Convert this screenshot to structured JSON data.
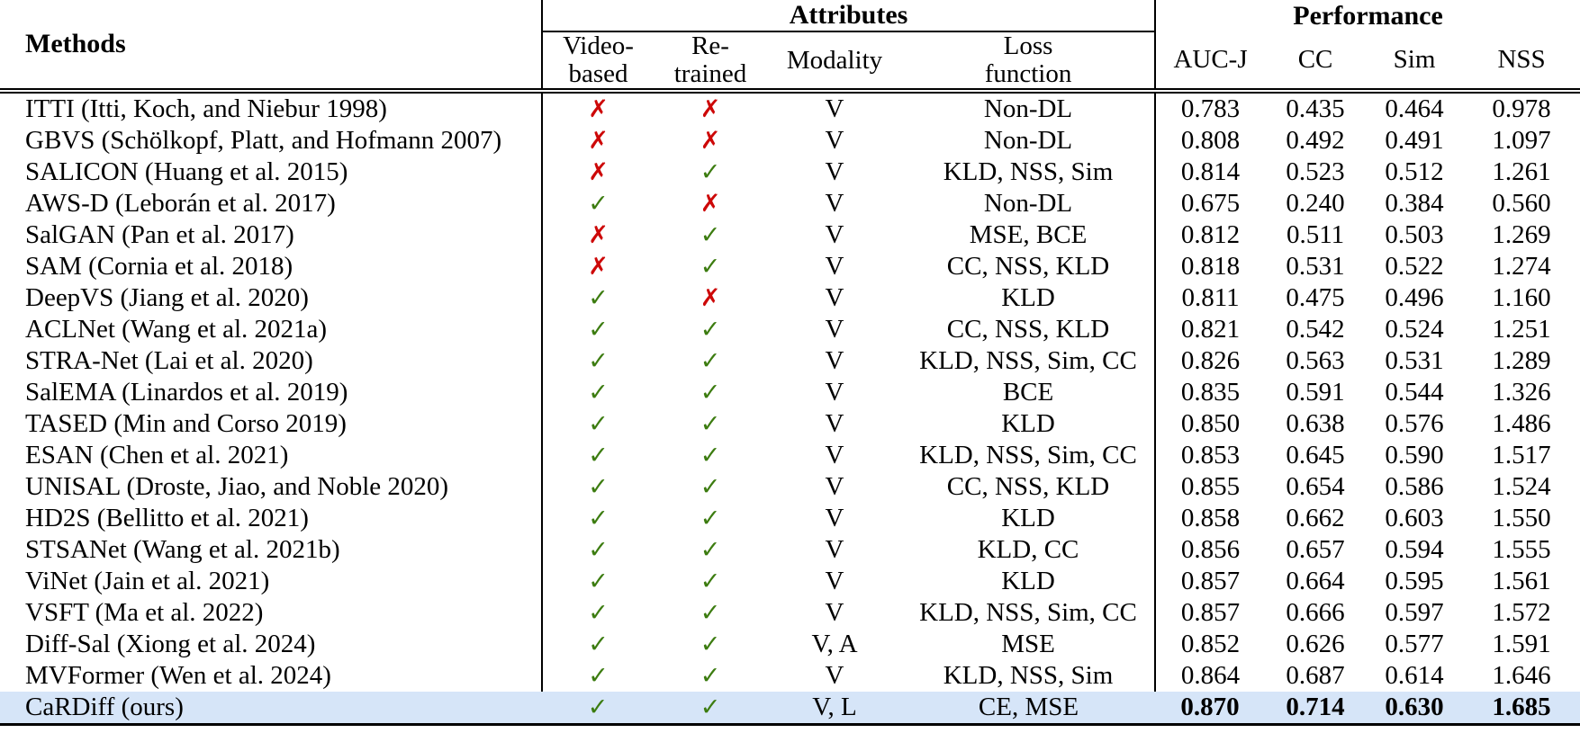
{
  "table": {
    "header": {
      "methods": "Methods",
      "attributes_group": "Attributes",
      "performance_group": "Performance"
    },
    "sub_headers": [
      {
        "line1": "Video-",
        "line2": "based"
      },
      {
        "line1": "Re-",
        "line2": "trained"
      },
      {
        "line1": "Modality",
        "line2": ""
      },
      {
        "line1": "Loss",
        "line2": "function"
      },
      {
        "line1": "AUC-J",
        "line2": ""
      },
      {
        "line1": "CC",
        "line2": ""
      },
      {
        "line1": "Sim",
        "line2": ""
      },
      {
        "line1": "NSS",
        "line2": ""
      }
    ],
    "rows": [
      {
        "method": "ITTI (Itti, Koch, and Niebur 1998)",
        "video_based": false,
        "re_trained": false,
        "modality": "V",
        "loss": "Non-DL",
        "auc_j": "0.783",
        "cc": "0.435",
        "sim": "0.464",
        "nss": "0.978",
        "highlight": false,
        "bold_perf": false
      },
      {
        "method": "GBVS (Schölkopf, Platt, and Hofmann 2007)",
        "video_based": false,
        "re_trained": false,
        "modality": "V",
        "loss": "Non-DL",
        "auc_j": "0.808",
        "cc": "0.492",
        "sim": "0.491",
        "nss": "1.097",
        "highlight": false,
        "bold_perf": false
      },
      {
        "method": "SALICON (Huang et al. 2015)",
        "video_based": false,
        "re_trained": true,
        "modality": "V",
        "loss": "KLD, NSS, Sim",
        "auc_j": "0.814",
        "cc": "0.523",
        "sim": "0.512",
        "nss": "1.261",
        "highlight": false,
        "bold_perf": false
      },
      {
        "method": "AWS-D (Leborán et al. 2017)",
        "video_based": true,
        "re_trained": false,
        "modality": "V",
        "loss": "Non-DL",
        "auc_j": "0.675",
        "cc": "0.240",
        "sim": "0.384",
        "nss": "0.560",
        "highlight": false,
        "bold_perf": false
      },
      {
        "method": "SalGAN (Pan et al. 2017)",
        "video_based": false,
        "re_trained": true,
        "modality": "V",
        "loss": "MSE, BCE",
        "auc_j": "0.812",
        "cc": "0.511",
        "sim": "0.503",
        "nss": "1.269",
        "highlight": false,
        "bold_perf": false
      },
      {
        "method": "SAM (Cornia et al. 2018)",
        "video_based": false,
        "re_trained": true,
        "modality": "V",
        "loss": "CC, NSS, KLD",
        "auc_j": "0.818",
        "cc": "0.531",
        "sim": "0.522",
        "nss": "1.274",
        "highlight": false,
        "bold_perf": false
      },
      {
        "method": "DeepVS (Jiang et al. 2020)",
        "video_based": true,
        "re_trained": false,
        "modality": "V",
        "loss": "KLD",
        "auc_j": "0.811",
        "cc": "0.475",
        "sim": "0.496",
        "nss": "1.160",
        "highlight": false,
        "bold_perf": false
      },
      {
        "method": "ACLNet (Wang et al. 2021a)",
        "video_based": true,
        "re_trained": true,
        "modality": "V",
        "loss": "CC, NSS, KLD",
        "auc_j": "0.821",
        "cc": "0.542",
        "sim": "0.524",
        "nss": "1.251",
        "highlight": false,
        "bold_perf": false
      },
      {
        "method": "STRA-Net (Lai et al. 2020)",
        "video_based": true,
        "re_trained": true,
        "modality": "V",
        "loss": "KLD, NSS, Sim, CC",
        "auc_j": "0.826",
        "cc": "0.563",
        "sim": "0.531",
        "nss": "1.289",
        "highlight": false,
        "bold_perf": false
      },
      {
        "method": "SalEMA (Linardos et al. 2019)",
        "video_based": true,
        "re_trained": true,
        "modality": "V",
        "loss": "BCE",
        "auc_j": "0.835",
        "cc": "0.591",
        "sim": "0.544",
        "nss": "1.326",
        "highlight": false,
        "bold_perf": false
      },
      {
        "method": "TASED (Min and Corso 2019)",
        "video_based": true,
        "re_trained": true,
        "modality": "V",
        "loss": "KLD",
        "auc_j": "0.850",
        "cc": "0.638",
        "sim": "0.576",
        "nss": "1.486",
        "highlight": false,
        "bold_perf": false
      },
      {
        "method": "ESAN (Chen et al. 2021)",
        "video_based": true,
        "re_trained": true,
        "modality": "V",
        "loss": "KLD, NSS, Sim, CC",
        "auc_j": "0.853",
        "cc": "0.645",
        "sim": "0.590",
        "nss": "1.517",
        "highlight": false,
        "bold_perf": false
      },
      {
        "method": "UNISAL (Droste, Jiao, and Noble 2020)",
        "video_based": true,
        "re_trained": true,
        "modality": "V",
        "loss": "CC, NSS, KLD",
        "auc_j": "0.855",
        "cc": "0.654",
        "sim": "0.586",
        "nss": "1.524",
        "highlight": false,
        "bold_perf": false
      },
      {
        "method": "HD2S (Bellitto et al. 2021)",
        "video_based": true,
        "re_trained": true,
        "modality": "V",
        "loss": "KLD",
        "auc_j": "0.858",
        "cc": "0.662",
        "sim": "0.603",
        "nss": "1.550",
        "highlight": false,
        "bold_perf": false
      },
      {
        "method": "STSANet (Wang et al. 2021b)",
        "video_based": true,
        "re_trained": true,
        "modality": "V",
        "loss": "KLD, CC",
        "auc_j": "0.856",
        "cc": "0.657",
        "sim": "0.594",
        "nss": "1.555",
        "highlight": false,
        "bold_perf": false
      },
      {
        "method": "ViNet (Jain et al. 2021)",
        "video_based": true,
        "re_trained": true,
        "modality": "V",
        "loss": "KLD",
        "auc_j": "0.857",
        "cc": "0.664",
        "sim": "0.595",
        "nss": "1.561",
        "highlight": false,
        "bold_perf": false
      },
      {
        "method": "VSFT (Ma et al. 2022)",
        "video_based": true,
        "re_trained": true,
        "modality": "V",
        "loss": "KLD, NSS, Sim, CC",
        "auc_j": "0.857",
        "cc": "0.666",
        "sim": "0.597",
        "nss": "1.572",
        "highlight": false,
        "bold_perf": false
      },
      {
        "method": "Diff-Sal (Xiong et al. 2024)",
        "video_based": true,
        "re_trained": true,
        "modality": "V, A",
        "loss": "MSE",
        "auc_j": "0.852",
        "cc": "0.626",
        "sim": "0.577",
        "nss": "1.591",
        "highlight": false,
        "bold_perf": false
      },
      {
        "method": "MVFormer (Wen et al. 2024)",
        "video_based": true,
        "re_trained": true,
        "modality": "V",
        "loss": "KLD, NSS, Sim",
        "auc_j": "0.864",
        "cc": "0.687",
        "sim": "0.614",
        "nss": "1.646",
        "highlight": false,
        "bold_perf": false
      },
      {
        "method": "CaRDiff (ours)",
        "video_based": true,
        "re_trained": true,
        "modality": "V, L",
        "loss": "CE, MSE",
        "auc_j": "0.870",
        "cc": "0.714",
        "sim": "0.630",
        "nss": "1.685",
        "highlight": true,
        "bold_perf": true
      }
    ]
  },
  "icons": {
    "check": "✓",
    "cross": "✗"
  },
  "colors": {
    "check_green": "#3c7c10",
    "cross_red": "#cd0808",
    "highlight_blue": "#d6e5f8"
  }
}
